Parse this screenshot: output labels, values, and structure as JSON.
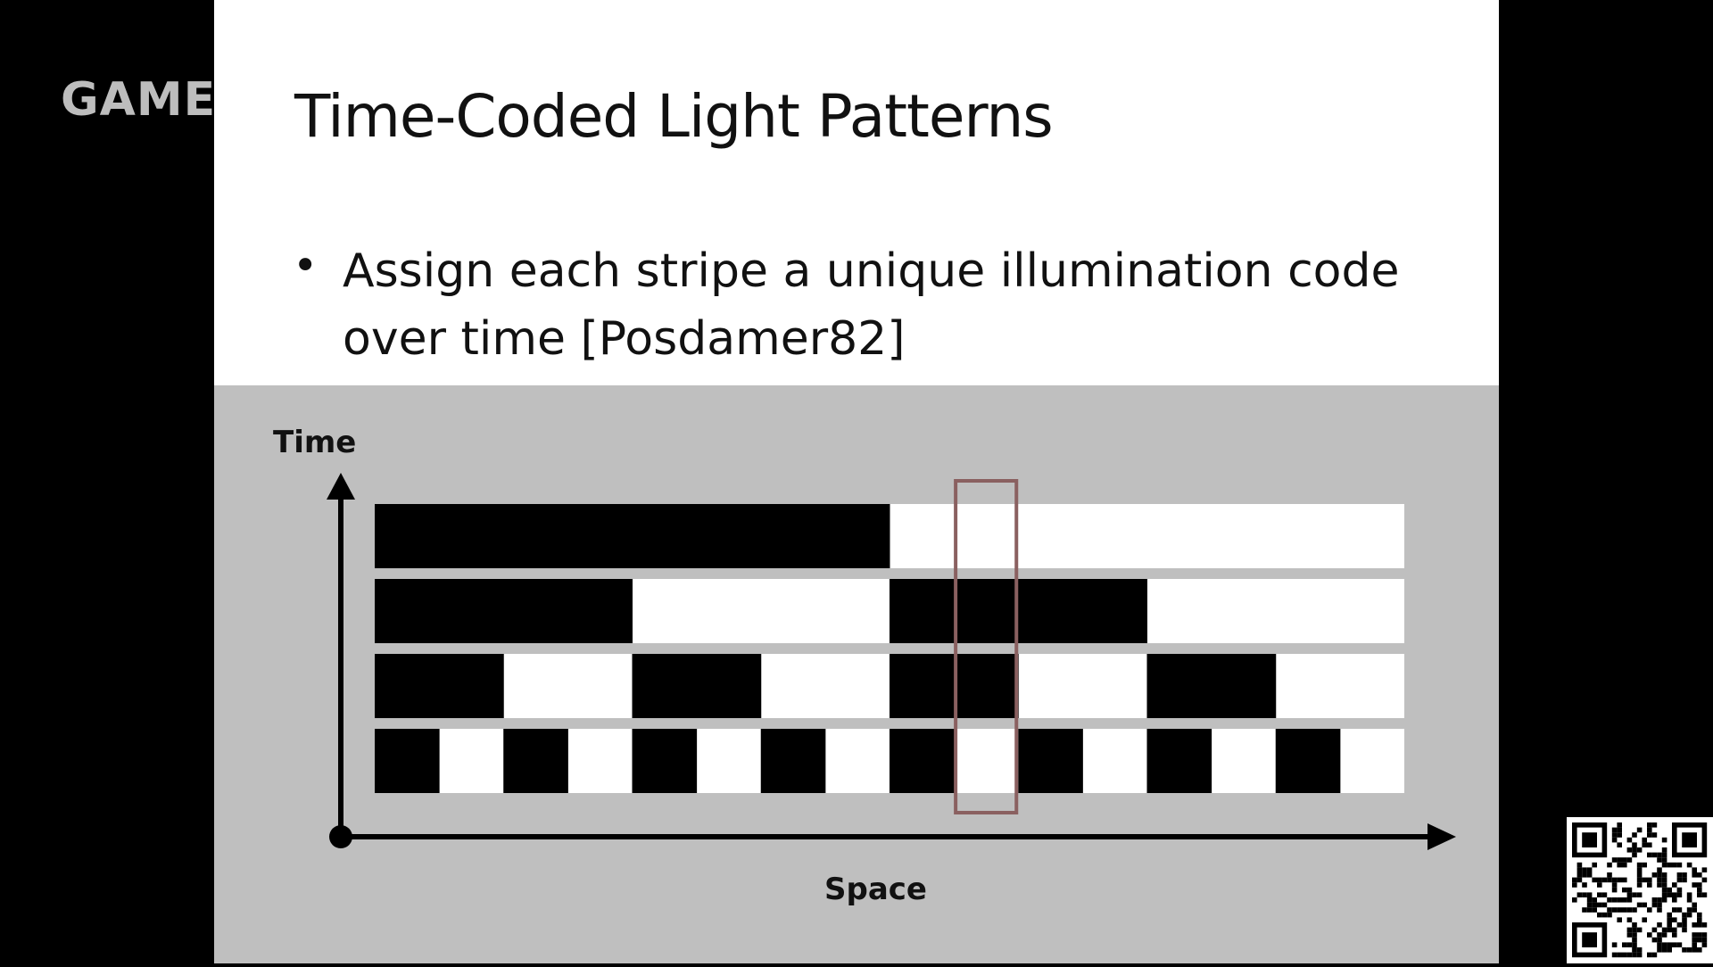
{
  "watermark": {
    "text": "GAMES"
  },
  "slide": {
    "title": "Time-Coded Light Patterns",
    "bullet": "Assign each stripe a unique illumination code over time [Posdamer82]"
  },
  "figure": {
    "ylabel": "Time",
    "xlabel": "Space",
    "stripe_count": 16,
    "highlighted_stripe_index": 9,
    "rows": [
      {
        "pattern": "1111111100000000"
      },
      {
        "pattern": "1111000011110000"
      },
      {
        "pattern": "1100110011001100"
      },
      {
        "pattern": "1010101010101010"
      }
    ],
    "colors": {
      "on": "#000000",
      "off": "#ffffff",
      "background": "#bfbfbf",
      "highlight": "#8a6060"
    }
  },
  "qr_code": {
    "icon": "qr-code-icon"
  }
}
